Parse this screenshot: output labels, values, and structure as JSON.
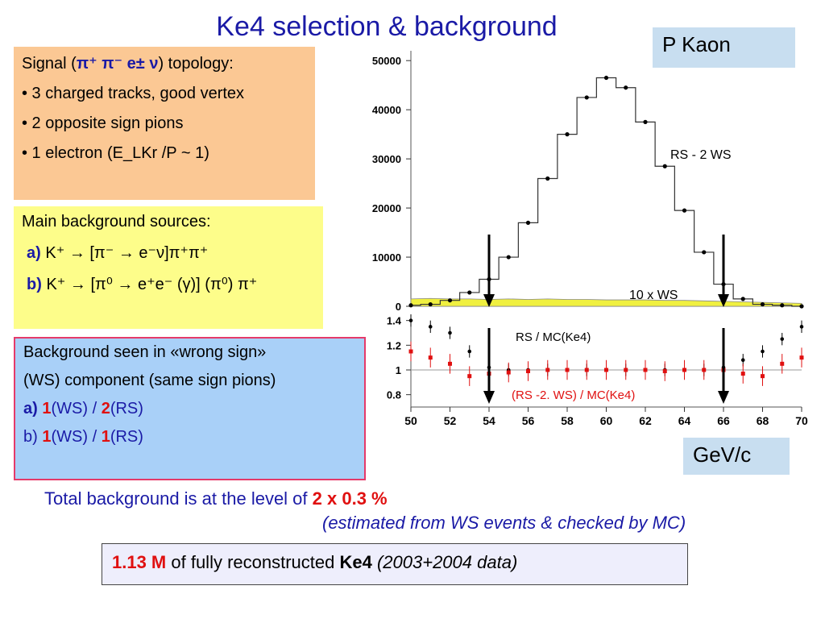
{
  "slide": {
    "title": "Ke4 selection & background",
    "signal_box": {
      "heading_prefix": "Signal (",
      "heading_formula": "π⁺ π⁻ e± ν",
      "heading_suffix": ") topology:",
      "bullets": [
        "• 3 charged tracks, good vertex",
        "• 2 opposite sign pions",
        "• 1 electron (E_LKr /P ~ 1)"
      ]
    },
    "background_box": {
      "heading": "Main background sources:",
      "item_a_label": "a)",
      "item_a_text": "K⁺ → [π⁻ →    e⁻ν]π⁺π⁺",
      "item_b_label": "b)",
      "item_b_text": "K⁺ → [π⁰ → e⁺e⁻ (γ)] (π⁰) π⁺"
    },
    "ws_box": {
      "line1": "Background seen in «wrong sign»",
      "line2": "(WS) component (same sign pions)",
      "item_a_label": "a)",
      "item_a_n1": "1",
      "item_a_mid": "(WS) / ",
      "item_a_n2": "2",
      "item_a_end": "(RS)",
      "item_b_label": "b)",
      "item_b_n1": "1",
      "item_b_mid": "(WS) / ",
      "item_b_n2": "1",
      "item_b_end": "(RS)"
    },
    "p_kaon_label": "P Kaon",
    "gevc_label": "GeV/c",
    "total_prefix": "Total background is at the level of ",
    "total_value": "2 x 0.3 %",
    "total_note": "(estimated from WS events & checked by MC)",
    "summary": {
      "count": "1.13 M",
      "text": " of fully reconstructed ",
      "channel": "Ke4",
      "years": " (2003+2004 data)"
    }
  },
  "colors": {
    "title": "#1a1aa6",
    "signal_bg": "#fbc894",
    "background_bg": "#fdfd8a",
    "ws_bg": "#a9d0f8",
    "ws_border": "#e53a6a",
    "highlight_red": "#e01010",
    "ws_band": "#f0f040",
    "ratio_red": "#e01010"
  },
  "chart_data": [
    {
      "type": "line",
      "name_label": "RS - 2 WS",
      "ws_label": "10 x WS",
      "x": [
        50,
        51,
        52,
        53,
        54,
        55,
        56,
        57,
        58,
        59,
        60,
        61,
        62,
        63,
        64,
        65,
        66,
        67,
        68,
        69,
        70
      ],
      "series": [
        {
          "name": "RS - 2 WS",
          "values": [
            200,
            400,
            1200,
            2800,
            5500,
            10000,
            17000,
            26000,
            35000,
            42500,
            46500,
            44500,
            37500,
            28500,
            19500,
            11000,
            4500,
            1500,
            400,
            200,
            0
          ]
        },
        {
          "name": "10 x WS",
          "values": [
            1500,
            1600,
            1500,
            1500,
            1400,
            1500,
            1400,
            1500,
            1400,
            1400,
            1300,
            1300,
            1300,
            1200,
            1200,
            1100,
            1000,
            900,
            800,
            700,
            600
          ]
        }
      ],
      "yticks": [
        "0",
        "10000",
        "20000",
        "30000",
        "40000",
        "50000"
      ],
      "ylim": [
        0,
        52000
      ],
      "cut_lines": [
        54,
        66
      ]
    },
    {
      "type": "scatter",
      "series_label_1": "RS / MC(Ke4)",
      "series_label_2": "(RS -2. WS) / MC(Ke4)",
      "x": [
        50,
        51,
        52,
        53,
        54,
        55,
        56,
        57,
        58,
        59,
        60,
        61,
        62,
        63,
        64,
        65,
        66,
        67,
        68,
        69,
        70
      ],
      "series": [
        {
          "name": "RS / MC(Ke4)",
          "values": [
            1.4,
            1.35,
            1.3,
            1.15,
            1.02,
            1.0,
            1.0,
            1.0,
            1.0,
            1.0,
            1.0,
            1.0,
            1.0,
            1.0,
            1.0,
            1.0,
            1.02,
            1.08,
            1.15,
            1.25,
            1.35
          ]
        },
        {
          "name": "(RS -2. WS) / MC(Ke4)",
          "values": [
            1.15,
            1.1,
            1.05,
            0.95,
            0.97,
            0.98,
            0.99,
            1.0,
            1.0,
            1.0,
            1.0,
            1.0,
            1.0,
            0.99,
            1.0,
            1.0,
            1.0,
            0.97,
            0.95,
            1.05,
            1.1
          ]
        }
      ],
      "yticks": [
        "0.8",
        "1",
        "1.2",
        "1.4"
      ],
      "ylim": [
        0.7,
        1.45
      ],
      "xticks": [
        "50",
        "52",
        "54",
        "56",
        "58",
        "60",
        "62",
        "64",
        "66",
        "68",
        "70"
      ],
      "xlim": [
        50,
        70
      ]
    }
  ]
}
